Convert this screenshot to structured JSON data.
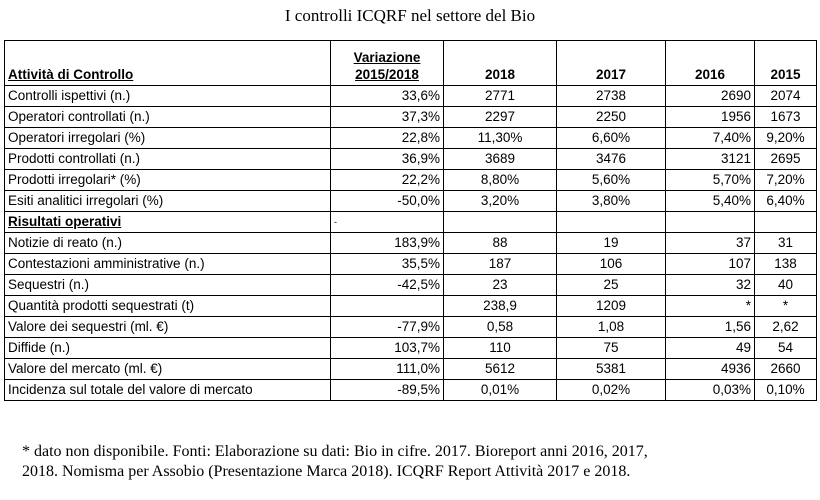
{
  "title": "I controlli ICQRF nel settore del Bio",
  "table": {
    "header": {
      "label": "Attività di Controllo",
      "variation_line1": "Variazione",
      "variation_line2": "2015/2018",
      "years": [
        "2018",
        "2017",
        "2016",
        "2015"
      ]
    },
    "rows_control": [
      {
        "label": "Controlli ispettivi (n.)",
        "var": "33,6%",
        "y2018": "2771",
        "y2017": "2738",
        "y2016": "2690",
        "y2015": "2074"
      },
      {
        "label": "Operatori controllati (n.)",
        "var": "37,3%",
        "y2018": "2297",
        "y2017": "2250",
        "y2016": "1956",
        "y2015": "1673"
      },
      {
        "label": "Operatori irregolari (%)",
        "var": "22,8%",
        "y2018": "11,30%",
        "y2017": "6,60%",
        "y2016": "7,40%",
        "y2015": "9,20%"
      },
      {
        "label": "Prodotti controllati (n.)",
        "var": "36,9%",
        "y2018": "3689",
        "y2017": "3476",
        "y2016": "3121",
        "y2015": "2695"
      },
      {
        "label": "Prodotti irregolari* (%)",
        "var": "22,2%",
        "y2018": "8,80%",
        "y2017": "5,60%",
        "y2016": "5,70%",
        "y2015": "7,20%"
      },
      {
        "label": "Esiti analitici irregolari (%)",
        "var": "-50,0%",
        "y2018": "3,20%",
        "y2017": "3,80%",
        "y2016": "5,40%",
        "y2015": "6,40%"
      }
    ],
    "section_label": "Risultati operativi",
    "section_mark": "-",
    "rows_results": [
      {
        "label": "Notizie di reato (n.)",
        "var": "183,9%",
        "y2018": "88",
        "y2017": "19",
        "y2016": "37",
        "y2015": "31"
      },
      {
        "label": "Contestazioni amministrative (n.)",
        "var": "35,5%",
        "y2018": "187",
        "y2017": "106",
        "y2016": "107",
        "y2015": "138"
      },
      {
        "label": "Sequestri (n.)",
        "var": "-42,5%",
        "y2018": "23",
        "y2017": "25",
        "y2016": "32",
        "y2015": "40"
      },
      {
        "label": "Quantità prodotti sequestrati (t)",
        "var": "",
        "y2018": "238,9",
        "y2017": "1209",
        "y2016": "*",
        "y2015": "*"
      },
      {
        "label": "Valore dei sequestri (ml. €)",
        "var": "-77,9%",
        "y2018": "0,58",
        "y2017": "1,08",
        "y2016": "1,56",
        "y2015": "2,62"
      },
      {
        "label": "Diffide (n.)",
        "var": "103,7%",
        "y2018": "110",
        "y2017": "75",
        "y2016": "49",
        "y2015": "54"
      },
      {
        "label": "Valore del mercato (ml. €)",
        "var": "111,0%",
        "y2018": "5612",
        "y2017": "5381",
        "y2016": "4936",
        "y2015": "2660"
      },
      {
        "label": "Incidenza sul totale del valore di mercato",
        "var": "-89,5%",
        "y2018": "0,01%",
        "y2017": "0,02%",
        "y2016": "0,03%",
        "y2015": "0,10%"
      }
    ]
  },
  "footnote": {
    "line1": "* dato non disponibile. Fonti: Elaborazione su dati: Bio in cifre. 2017. Bioreport anni 2016, 2017,",
    "line2": "2018. Nomisma per Assobio (Presentazione Marca 2018). ICQRF Report Attività 2017 e 2018."
  }
}
